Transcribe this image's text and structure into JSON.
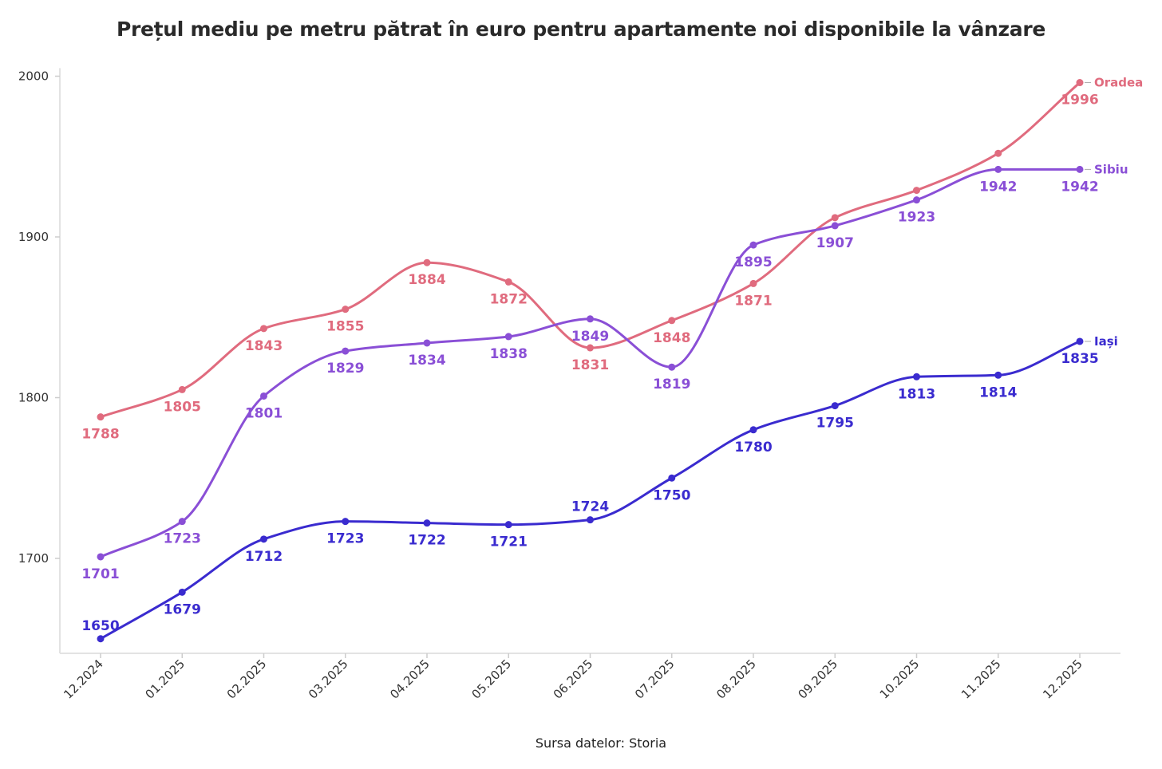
{
  "chart_data": {
    "type": "line",
    "title": "Prețul mediu pe metru pătrat în euro pentru apartamente noi disponibile la vânzare",
    "source": "Sursa datelor: Storia",
    "xlabel": "",
    "ylabel": "",
    "categories": [
      "12.2024",
      "01.2025",
      "02.2025",
      "03.2025",
      "04.2025",
      "05.2025",
      "06.2025",
      "07.2025",
      "08.2025",
      "09.2025",
      "10.2025",
      "11.2025",
      "12.2025"
    ],
    "yticks": [
      1700,
      1800,
      1900,
      2000
    ],
    "ylim": [
      1640,
      2005
    ],
    "grid": false,
    "series": [
      {
        "name": "Oradea",
        "color": "#e06b7e",
        "values": [
          1788,
          1805,
          1843,
          1855,
          1884,
          1872,
          1831,
          1848,
          1871,
          1912,
          1929,
          1952,
          1996
        ],
        "labels": [
          "1788",
          "1805",
          "1843",
          "1855",
          "1884",
          "1872",
          "1831",
          "1848",
          "1871",
          "",
          "",
          "",
          "1996"
        ]
      },
      {
        "name": "Sibiu",
        "color": "#8a4fd6",
        "values": [
          1701,
          1723,
          1801,
          1829,
          1834,
          1838,
          1849,
          1819,
          1895,
          1907,
          1923,
          1942,
          1942
        ],
        "labels": [
          "1701",
          "1723",
          "1801",
          "1829",
          "1834",
          "1838",
          "1849",
          "1819",
          "1895",
          "1907",
          "1923",
          "1942",
          "1942"
        ]
      },
      {
        "name": "Iași",
        "color": "#3a2bcf",
        "values": [
          1650,
          1679,
          1712,
          1723,
          1722,
          1721,
          1724,
          1750,
          1780,
          1795,
          1813,
          1814,
          1835
        ],
        "labels": [
          "1650",
          "1679",
          "1712",
          "1723",
          "1722",
          "1721",
          "1724",
          "1750",
          "1780",
          "1795",
          "1813",
          "1814",
          "1835"
        ]
      }
    ]
  }
}
